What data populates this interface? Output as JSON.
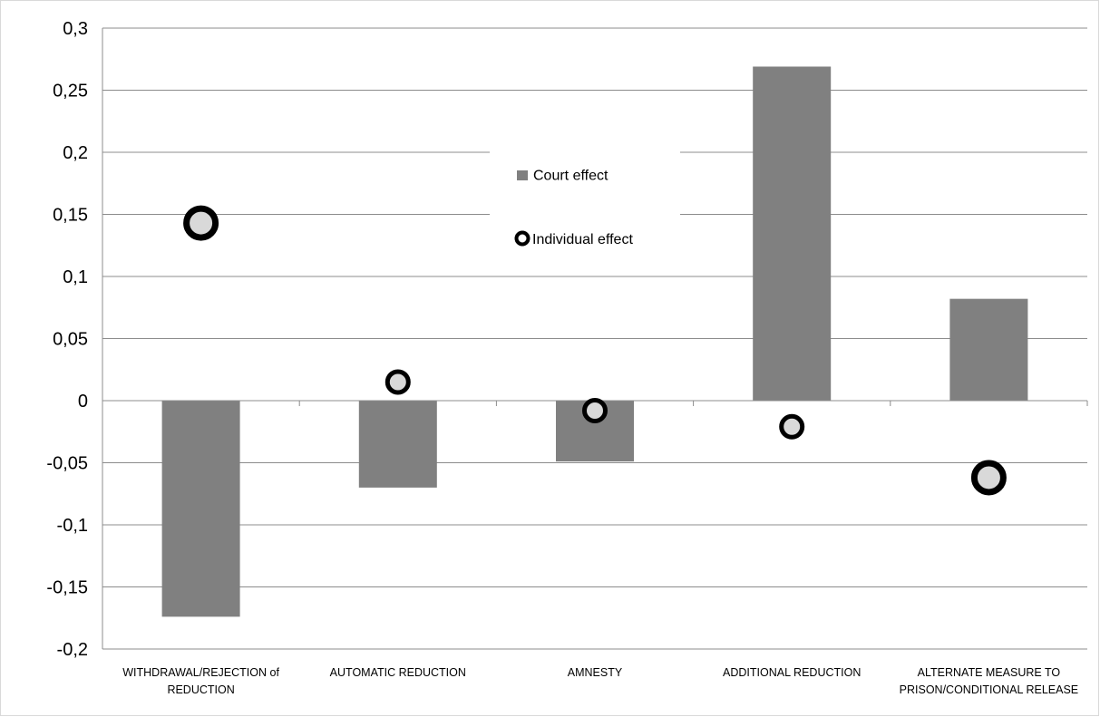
{
  "chart_data": {
    "type": "bar",
    "categories": [
      [
        "WITHDRAWAL/REJECTION of",
        "REDUCTION"
      ],
      [
        "AUTOMATIC REDUCTION"
      ],
      [
        "AMNESTY"
      ],
      [
        "ADDITIONAL REDUCTION"
      ],
      [
        "ALTERNATE MEASURE TO",
        "PRISON/CONDITIONAL RELEASE"
      ]
    ],
    "series": [
      {
        "name": "Court effect",
        "kind": "bar",
        "values": [
          -0.174,
          -0.07,
          -0.049,
          0.269,
          0.082
        ]
      },
      {
        "name": "Individual effect",
        "kind": "marker",
        "values": [
          0.143,
          0.015,
          -0.008,
          -0.021,
          -0.062
        ]
      }
    ],
    "marker_sizes": [
      "large",
      "small",
      "small",
      "small",
      "large"
    ],
    "ylim": [
      -0.2,
      0.3
    ],
    "yticks": [
      "-0,2",
      "-0,15",
      "-0,1",
      "-0,05",
      "0",
      "0,05",
      "0,1",
      "0,15",
      "0,2",
      "0,25",
      "0,3"
    ],
    "grid": true,
    "legend_position": "center-top",
    "colors": {
      "bar": "#808080",
      "marker_fill": "#d9d9d9",
      "marker_stroke": "#000000",
      "grid": "#8c8c8c",
      "axis": "#8c8c8c"
    }
  }
}
